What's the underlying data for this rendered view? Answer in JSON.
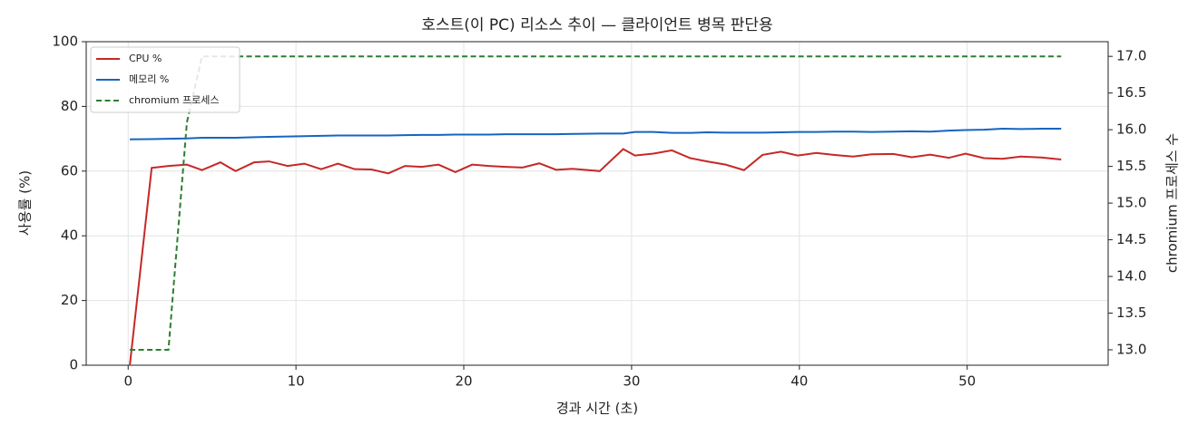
{
  "chart_data": {
    "type": "line",
    "title": "호스트(이 PC) 리소스 추이 — 클라이언트 병목 판단용",
    "xlabel": "경과 시간 (초)",
    "ylabel": "사용률 (%)",
    "y2label": "chromium 프로세스 수",
    "x": [
      0.1,
      1.4,
      2.4,
      3.5,
      4.4,
      5.5,
      6.4,
      7.5,
      8.4,
      9.5,
      10.5,
      11.5,
      12.5,
      13.5,
      14.5,
      15.5,
      16.5,
      17.5,
      18.5,
      19.5,
      20.5,
      21.5,
      22.5,
      23.5,
      24.5,
      25.5,
      26.5,
      28.1,
      29.5,
      30.2,
      31.3,
      32.4,
      33.5,
      34.5,
      35.6,
      36.7,
      37.8,
      38.9,
      39.9,
      41.0,
      42.1,
      43.2,
      44.3,
      45.6,
      46.7,
      47.8,
      48.9,
      49.9,
      51.0,
      52.1,
      53.2,
      54.4,
      55.6
    ],
    "series": [
      {
        "name": "CPU %",
        "color": "#c62828",
        "dash": false,
        "axis": "y",
        "values": [
          0,
          61,
          61.6,
          62,
          60.3,
          62.7,
          60,
          62.7,
          63,
          61.6,
          62.3,
          60.6,
          62.3,
          60.6,
          60.5,
          59.3,
          61.6,
          61.3,
          62,
          59.7,
          62,
          61.6,
          61.3,
          61.1,
          62.4,
          60.4,
          60.7,
          60,
          66.8,
          64.8,
          65.4,
          66.4,
          64,
          63,
          62,
          60.3,
          65,
          66,
          64.8,
          65.6,
          65,
          64.5,
          65.2,
          65.3,
          64.3,
          65.1,
          64.1,
          65.4,
          64,
          63.8,
          64.5,
          64.2,
          63.6
        ]
      },
      {
        "name": "메모리 %",
        "color": "#1565c0",
        "dash": false,
        "axis": "y",
        "values": [
          69.8,
          69.9,
          70,
          70.1,
          70.3,
          70.3,
          70.3,
          70.5,
          70.6,
          70.7,
          70.8,
          70.9,
          71,
          71,
          71,
          71,
          71.1,
          71.2,
          71.2,
          71.3,
          71.3,
          71.3,
          71.4,
          71.4,
          71.4,
          71.4,
          71.5,
          71.6,
          71.6,
          72.1,
          72.1,
          71.8,
          71.8,
          72,
          71.9,
          71.9,
          71.9,
          72,
          72.1,
          72.1,
          72.2,
          72.2,
          72.1,
          72.2,
          72.3,
          72.2,
          72.5,
          72.7,
          72.8,
          73.1,
          73,
          73.1,
          73.1
        ]
      },
      {
        "name": "chromium 프로세스",
        "color": "#2e7d32",
        "dash": true,
        "axis": "y2",
        "values": [
          13,
          13,
          13,
          16.1,
          17,
          17,
          17,
          17,
          17,
          17,
          17,
          17,
          17,
          17,
          17,
          17,
          17,
          17,
          17,
          17,
          17,
          17,
          17,
          17,
          17,
          17,
          17,
          17,
          17,
          17,
          17,
          17,
          17,
          17,
          17,
          17,
          17,
          17,
          17,
          17,
          17,
          17,
          17,
          17,
          17,
          17,
          17,
          17,
          17,
          17,
          17,
          17,
          17
        ]
      }
    ],
    "xlim": [
      -2.5,
      58.4
    ],
    "xticks": [
      0,
      10,
      20,
      30,
      40,
      50
    ],
    "ylim": [
      0,
      100
    ],
    "yticks": [
      0,
      20,
      40,
      60,
      80,
      100
    ],
    "y2lim": [
      12.79,
      17.2
    ],
    "y2ticks": [
      {
        "value": 13,
        "label": "13.0"
      },
      13.5,
      {
        "value": 14,
        "label": "14.0"
      },
      14.5,
      {
        "value": 15,
        "label": "15.0"
      },
      15.5,
      {
        "value": 16,
        "label": "16.0"
      },
      16.5,
      {
        "value": 17,
        "label": "17.0"
      }
    ],
    "grid": true,
    "legend": "upper left"
  }
}
